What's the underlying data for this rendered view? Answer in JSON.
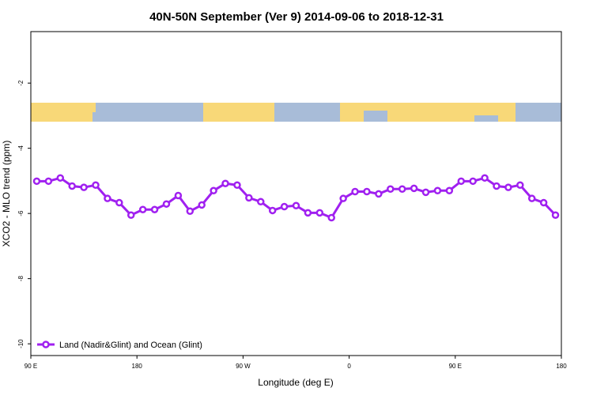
{
  "chart_data": {
    "type": "line",
    "title": "40N-50N September (Ver 9)   2014-09-06 to 2018-12-31",
    "x_label": "Longitude (deg E)",
    "y_label": "XCO2 - MLO trend (ppm)",
    "xlim": [
      90,
      540
    ],
    "ylim": [
      -10.36,
      -0.42
    ],
    "xticks": [
      {
        "value": 90,
        "label": "90 E"
      },
      {
        "value": 180,
        "label": "180"
      },
      {
        "value": 270,
        "label": "90 W"
      },
      {
        "value": 360,
        "label": "0"
      },
      {
        "value": 450,
        "label": "90 E"
      },
      {
        "value": 540,
        "label": "180"
      }
    ],
    "yticks": [
      -2,
      -4,
      -6,
      -8,
      -10
    ],
    "legend": "bottom-left",
    "series": [
      {
        "name": "Land (Nadir&Glint) and Ocean (Glint)",
        "color": "#a020f0",
        "x": [
          95,
          105,
          115,
          125,
          135,
          145,
          155,
          165,
          175,
          185,
          195,
          205,
          215,
          225,
          235,
          245,
          255,
          265,
          275,
          285,
          295,
          305,
          315,
          325,
          335,
          345,
          355,
          365,
          375,
          385,
          395,
          405,
          415,
          425,
          435,
          445,
          455,
          465,
          475,
          485,
          495,
          505,
          515,
          525,
          535
        ],
        "values": [
          -5.01,
          -5.01,
          -4.91,
          -5.16,
          -5.2,
          -5.13,
          -5.54,
          -5.67,
          -6.05,
          -5.88,
          -5.88,
          -5.71,
          -5.45,
          -5.93,
          -5.74,
          -5.3,
          -5.08,
          -5.13,
          -5.52,
          -5.64,
          -5.91,
          -5.79,
          -5.76,
          -5.98,
          -5.98,
          -6.13,
          -5.54,
          -5.33,
          -5.33,
          -5.4,
          -5.25,
          -5.25,
          -5.23,
          -5.35,
          -5.3,
          -5.3,
          -5.01,
          -5.01,
          -4.91,
          -5.16,
          -5.2,
          -5.13,
          -5.54,
          -5.67,
          -6.05
        ]
      }
    ]
  }
}
